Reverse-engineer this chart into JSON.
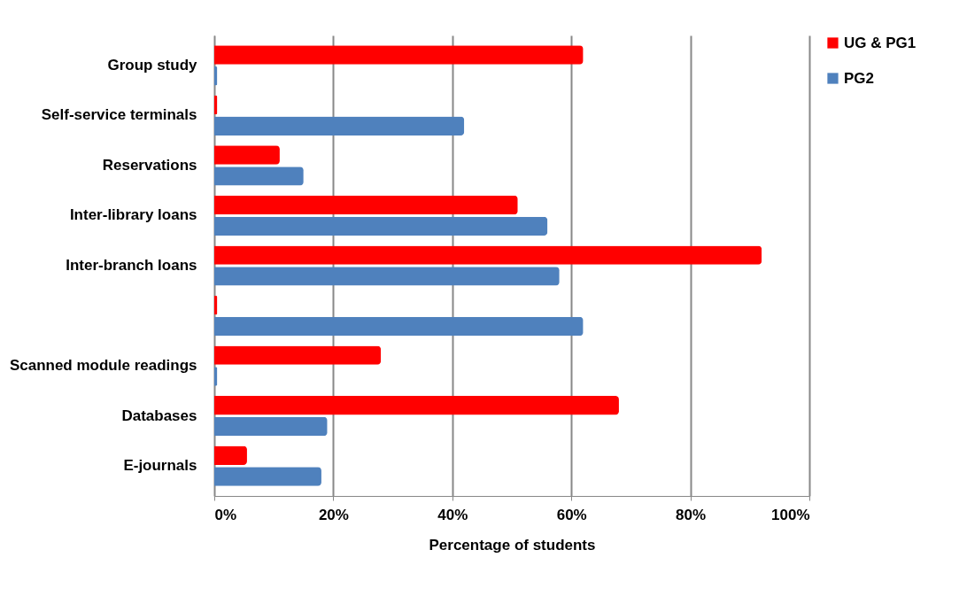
{
  "chart_data": {
    "type": "bar",
    "orientation": "horizontal",
    "xlabel": "Percentage of students",
    "categories": [
      "Group study",
      "Self-service terminals",
      "Reservations",
      "Inter-library loans",
      "Inter-branch loans",
      null,
      "Scanned module readings",
      "Databases",
      "E-journals"
    ],
    "series": [
      {
        "name": "UG & PG1",
        "color": "#ff0000",
        "values": [
          62,
          0.5,
          11,
          51,
          92,
          0.5,
          28,
          68,
          5.5
        ]
      },
      {
        "name": "PG2",
        "color": "#4f81bd",
        "values": [
          0.5,
          42,
          15,
          56,
          58,
          62,
          0.5,
          19,
          18
        ]
      }
    ],
    "xlim": [
      0,
      100
    ],
    "xticks": [
      {
        "value": 0,
        "label": "0%"
      },
      {
        "value": 20,
        "label": "20%"
      },
      {
        "value": 40,
        "label": "40%"
      },
      {
        "value": 60,
        "label": "60%"
      },
      {
        "value": 80,
        "label": "80%"
      },
      {
        "value": 100,
        "label": "100%"
      }
    ],
    "grid": "x",
    "legend": "top right"
  }
}
